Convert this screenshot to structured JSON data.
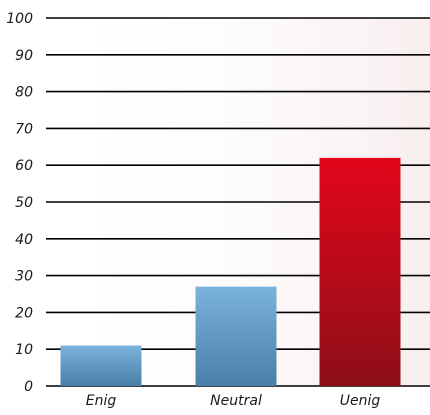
{
  "chart_data": {
    "type": "bar",
    "categories": [
      "Enig",
      "Neutral",
      "Uenig"
    ],
    "values": [
      11,
      27,
      62
    ],
    "ylim": [
      0,
      100
    ],
    "yticks": [
      "0",
      "10",
      "20",
      "30",
      "40",
      "50",
      "60",
      "70",
      "80",
      "90",
      "100"
    ],
    "grid": true,
    "legend": "none",
    "title": "",
    "xlabel": "",
    "ylabel": "",
    "colors": {
      "blue_top": "#7ab3dc",
      "blue_bottom": "#4a7fa8",
      "red_top": "#e3061a",
      "red_bottom": "#8c0f18",
      "grid": "#000000",
      "background_tint": "#f7ecec"
    },
    "bar_fill": [
      "blue",
      "blue",
      "red"
    ]
  }
}
